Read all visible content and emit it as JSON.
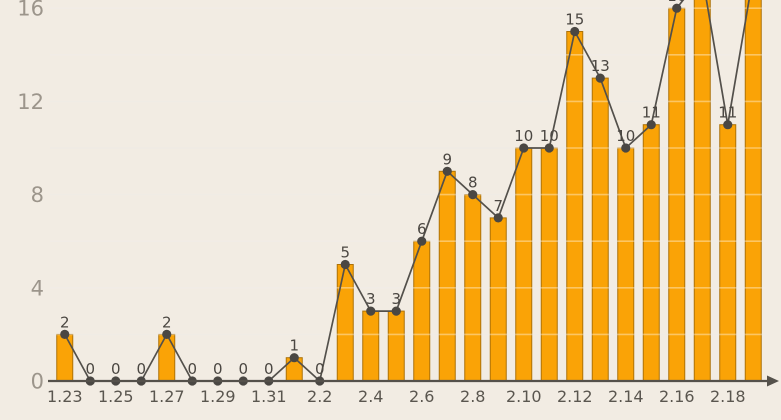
{
  "chart_data": {
    "type": "bar",
    "overlay": "line",
    "title": "",
    "legend": "none",
    "grid": "horizontal gridlines every 2 units, drawn over bars",
    "ylim": [
      0,
      16.5
    ],
    "y_ticks": [
      "0",
      "4",
      "8",
      "12",
      "16"
    ],
    "x_tick_labels": [
      "1.23",
      "1.25",
      "1.27",
      "1.29",
      "1.31",
      "2.2",
      "2.4",
      "2.6",
      "2.8",
      "2.10",
      "2.12",
      "2.14",
      "2.16",
      "2.18"
    ],
    "points": [
      {
        "x": "1.23",
        "value": 2,
        "label": "2"
      },
      {
        "x": "1.24",
        "value": 0,
        "label": "0"
      },
      {
        "x": "1.25",
        "value": 0,
        "label": "0"
      },
      {
        "x": "1.26",
        "value": 0,
        "label": "0"
      },
      {
        "x": "1.27",
        "value": 2,
        "label": "2"
      },
      {
        "x": "1.28",
        "value": 0,
        "label": "0"
      },
      {
        "x": "1.29",
        "value": 0,
        "label": "0"
      },
      {
        "x": "1.30",
        "value": 0,
        "label": "0"
      },
      {
        "x": "1.31",
        "value": 0,
        "label": "0"
      },
      {
        "x": "2.1",
        "value": 1,
        "label": "1"
      },
      {
        "x": "2.2",
        "value": 0,
        "label": "0"
      },
      {
        "x": "2.3",
        "value": 5,
        "label": "5"
      },
      {
        "x": "2.4",
        "value": 3,
        "label": "3"
      },
      {
        "x": "2.5",
        "value": 3,
        "label": "3"
      },
      {
        "x": "2.6",
        "value": 6,
        "label": "6"
      },
      {
        "x": "2.7",
        "value": 9,
        "label": "9"
      },
      {
        "x": "2.8",
        "value": 8,
        "label": "8"
      },
      {
        "x": "2.9",
        "value": 7,
        "label": "7"
      },
      {
        "x": "2.10",
        "value": 10,
        "label": "10"
      },
      {
        "x": "2.11",
        "value": 10,
        "label": "10"
      },
      {
        "x": "2.12",
        "value": 15,
        "label": "15"
      },
      {
        "x": "2.13",
        "value": 13,
        "label": "13"
      },
      {
        "x": "2.14",
        "value": 10,
        "label": "10"
      },
      {
        "x": "2.15",
        "value": 11,
        "label": "11"
      },
      {
        "x": "2.16",
        "value": 16,
        "label": "16"
      },
      {
        "x": "2.17",
        "value": null,
        "label": "",
        "clipped": true
      },
      {
        "x": "2.18",
        "value": 11,
        "label": "11"
      },
      {
        "x": "2.19",
        "value": null,
        "label": "",
        "clipped": true
      }
    ],
    "clipped_note": "Bars at 2.17 and 2.19 extend beyond the top edge of the image; their tops and value labels are not visible. The label above 2.16 is partially cut off at the top edge.",
    "colors": {
      "background": "#F2ECE3",
      "bar_fill": "#FAA306",
      "bar_border": "#AD7208",
      "line": "#53504B",
      "marker": "#4A4743",
      "gridline_under": "#E7E0D5",
      "gridline_over": "rgba(255,255,255,0.38)",
      "axis": "#55514B",
      "y_tick_text": "#9C958B",
      "x_tick_text": "#5A564F",
      "data_label_text": "#4B4742"
    }
  }
}
